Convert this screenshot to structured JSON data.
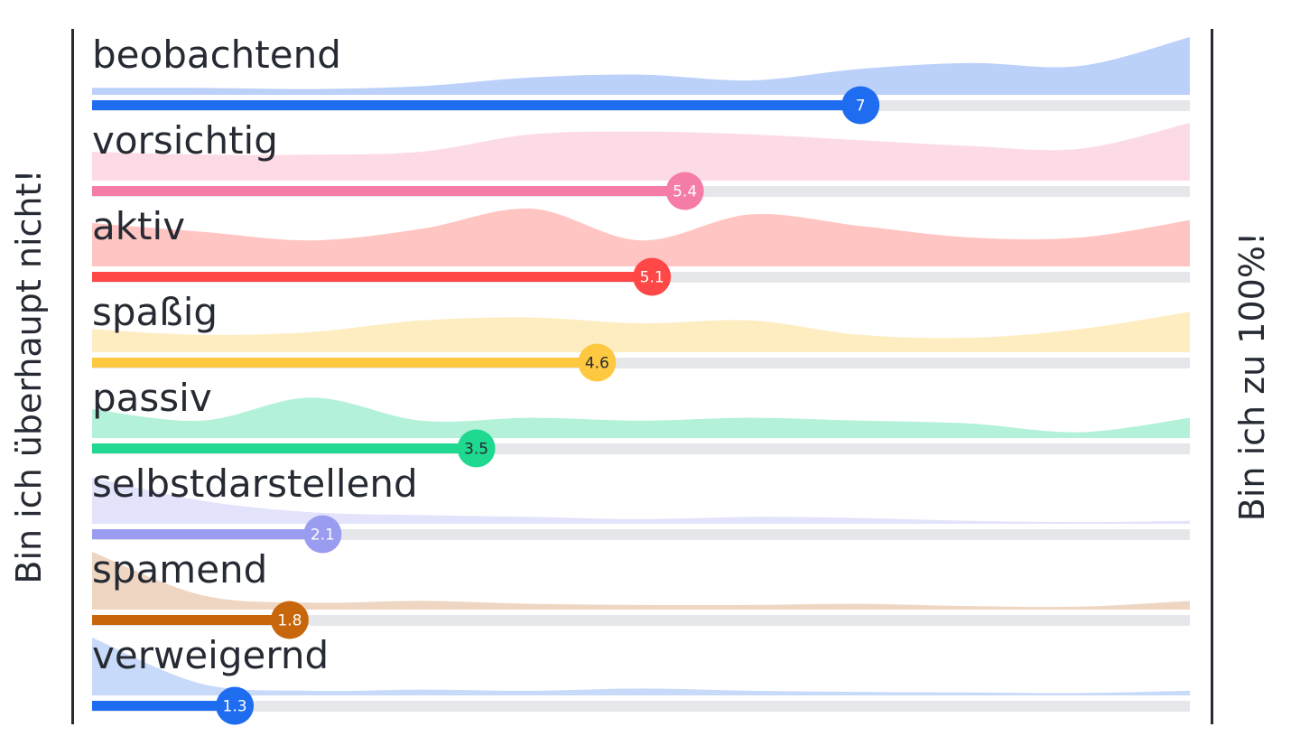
{
  "left_label": "Bin ich überhaupt nicht!",
  "right_label": "Bin ich zu 100%!",
  "chart_data": {
    "type": "bar",
    "orientation": "horizontal",
    "scale": [
      0,
      10
    ],
    "grid": false,
    "categories": [
      "beobachtend",
      "vorsichtig",
      "aktiv",
      "spaßig",
      "passiv",
      "selbstdarstellend",
      "spamend",
      "verweigernd"
    ],
    "values": [
      7,
      5.4,
      5.1,
      4.6,
      3.5,
      2.1,
      1.8,
      1.3
    ],
    "value_labels": [
      "7",
      "5.4",
      "5.1",
      "4.6",
      "3.5",
      "2.1",
      "1.8",
      "1.3"
    ],
    "distributions": [
      [
        0.12,
        0.12,
        0.1,
        0.15,
        0.3,
        0.35,
        0.25,
        0.45,
        0.55,
        0.5,
        1.0
      ],
      [
        0.5,
        0.45,
        0.45,
        0.5,
        0.8,
        0.85,
        0.8,
        0.7,
        0.6,
        0.55,
        1.0
      ],
      [
        0.75,
        0.6,
        0.45,
        0.65,
        1.0,
        0.45,
        0.9,
        0.7,
        0.5,
        0.5,
        0.8
      ],
      [
        0.4,
        0.3,
        0.35,
        0.55,
        0.6,
        0.5,
        0.55,
        0.3,
        0.25,
        0.4,
        0.7
      ],
      [
        0.5,
        0.3,
        0.7,
        0.3,
        0.35,
        0.3,
        0.35,
        0.3,
        0.25,
        0.1,
        0.35
      ],
      [
        0.8,
        0.4,
        0.2,
        0.15,
        0.12,
        0.08,
        0.12,
        0.1,
        0.05,
        0.03,
        0.05
      ],
      [
        1.0,
        0.25,
        0.12,
        0.15,
        0.1,
        0.08,
        0.08,
        0.1,
        0.06,
        0.05,
        0.15
      ],
      [
        1.0,
        0.2,
        0.08,
        0.1,
        0.08,
        0.12,
        0.08,
        0.06,
        0.05,
        0.04,
        0.08
      ]
    ],
    "colors": [
      "#1e6cf0",
      "#f47ca6",
      "#ff4747",
      "#fec841",
      "#1ed98f",
      "#9a9cf0",
      "#c8660c",
      "#1e6cf0"
    ],
    "fill_colors": [
      "#bcd1f9",
      "#fddbe6",
      "#ffc5c2",
      "#ffedc2",
      "#b3f1d9",
      "#e3e3fb",
      "#eed6c2",
      "#c8dafa"
    ],
    "value_text_colors": [
      "#ffffff",
      "#ffffff",
      "#ffffff",
      "#262a33",
      "#262a33",
      "#ffffff",
      "#ffffff",
      "#ffffff"
    ]
  }
}
